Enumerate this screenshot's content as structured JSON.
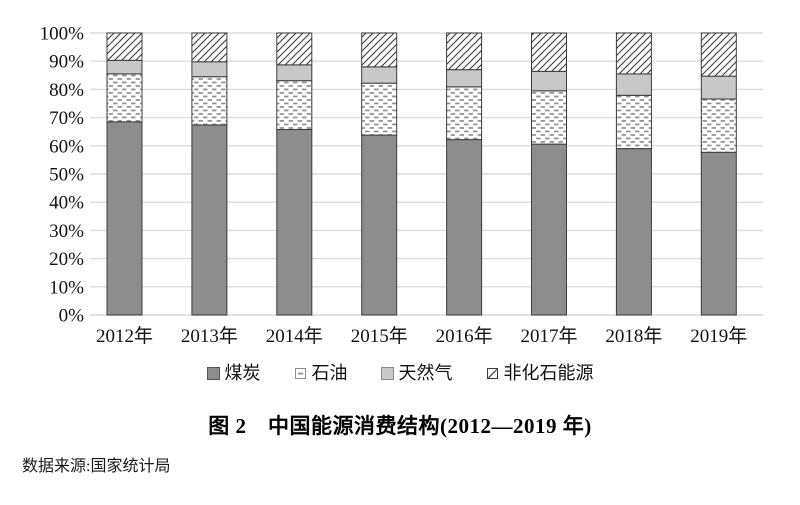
{
  "figure": {
    "title": "图 2　中国能源消费结构(2012—2019 年)",
    "source": "数据来源:国家统计局"
  },
  "chart_data": {
    "type": "bar",
    "stacked": true,
    "title": "图 2　中国能源消费结构(2012—2019 年)",
    "categories": [
      "2012年",
      "2013年",
      "2014年",
      "2015年",
      "2016年",
      "2017年",
      "2018年",
      "2019年"
    ],
    "series": [
      {
        "name": "煤炭",
        "style": "solid",
        "color": "#8d8d8d",
        "values": [
          68.5,
          67.4,
          65.8,
          63.8,
          62.2,
          60.6,
          59.0,
          57.7
        ]
      },
      {
        "name": "石油",
        "style": "dash-pattern",
        "color": "#ffffff",
        "values": [
          17.0,
          17.1,
          17.3,
          18.4,
          18.7,
          18.9,
          18.9,
          18.9
        ]
      },
      {
        "name": "天然气",
        "style": "solid",
        "color": "#c8c8c8",
        "values": [
          4.8,
          5.3,
          5.6,
          5.8,
          6.1,
          6.9,
          7.6,
          8.1
        ]
      },
      {
        "name": "非化石能源",
        "style": "hatch-pattern",
        "color": "#ffffff",
        "values": [
          9.7,
          10.2,
          11.3,
          12.0,
          13.0,
          13.6,
          14.5,
          15.3
        ]
      }
    ],
    "xlabel": "",
    "ylabel": "",
    "ylim": [
      0,
      100
    ],
    "y_ticks": [
      "0%",
      "10%",
      "20%",
      "30%",
      "40%",
      "50%",
      "60%",
      "70%",
      "80%",
      "90%",
      "100%"
    ],
    "unit": "percent",
    "grid": true,
    "legend_position": "bottom"
  },
  "colors": {
    "grid": "#dcdcdc",
    "bar_border": "#3b3b3b",
    "pattern_ink": "#8f8f8f",
    "text": "#111111"
  }
}
